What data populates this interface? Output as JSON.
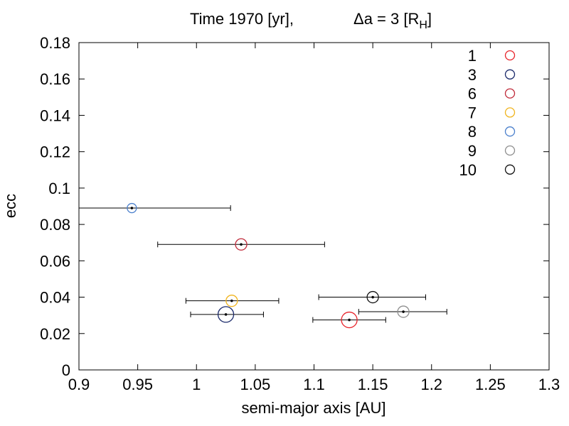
{
  "chart_data": {
    "type": "scatter",
    "title_prefix": "Time 1970 [yr],",
    "title_delta": "Δa = 3 [R",
    "title_subscript": "H",
    "title_suffix": "]",
    "xlabel": "semi-major axis [AU]",
    "ylabel": "ecc",
    "xlim": [
      0.9,
      1.3
    ],
    "ylim": [
      0,
      0.18
    ],
    "xticks": [
      "0.9",
      "0.95",
      "1",
      "1.05",
      "1.1",
      "1.15",
      "1.2",
      "1.25",
      "1.3"
    ],
    "yticks": [
      "0",
      "0.02",
      "0.04",
      "0.06",
      "0.08",
      "0.1",
      "0.12",
      "0.14",
      "0.16",
      "0.18"
    ],
    "grid": false,
    "legend_position": "top-right",
    "series": [
      {
        "name": "1",
        "color": "#e8242b",
        "a": 1.13,
        "e": 0.0275,
        "a_min": 1.099,
        "a_max": 1.161,
        "size": "large"
      },
      {
        "name": "3",
        "color": "#1b2a6b",
        "a": 1.025,
        "e": 0.0305,
        "a_min": 0.995,
        "a_max": 1.057,
        "size": "large"
      },
      {
        "name": "6",
        "color": "#c02a3a",
        "a": 1.038,
        "e": 0.069,
        "a_min": 0.967,
        "a_max": 1.109,
        "size": "medium"
      },
      {
        "name": "7",
        "color": "#f0b41e",
        "a": 1.03,
        "e": 0.038,
        "a_min": 0.991,
        "a_max": 1.07,
        "size": "medium"
      },
      {
        "name": "8",
        "color": "#4a7fcc",
        "a": 0.945,
        "e": 0.089,
        "a_min": 0.9,
        "a_max": 1.029,
        "size": "small"
      },
      {
        "name": "9",
        "color": "#8e8e8e",
        "a": 1.176,
        "e": 0.032,
        "a_min": 1.138,
        "a_max": 1.213,
        "size": "medium"
      },
      {
        "name": "10",
        "color": "#111111",
        "a": 1.15,
        "e": 0.04,
        "a_min": 1.104,
        "a_max": 1.195,
        "size": "medium"
      }
    ]
  }
}
